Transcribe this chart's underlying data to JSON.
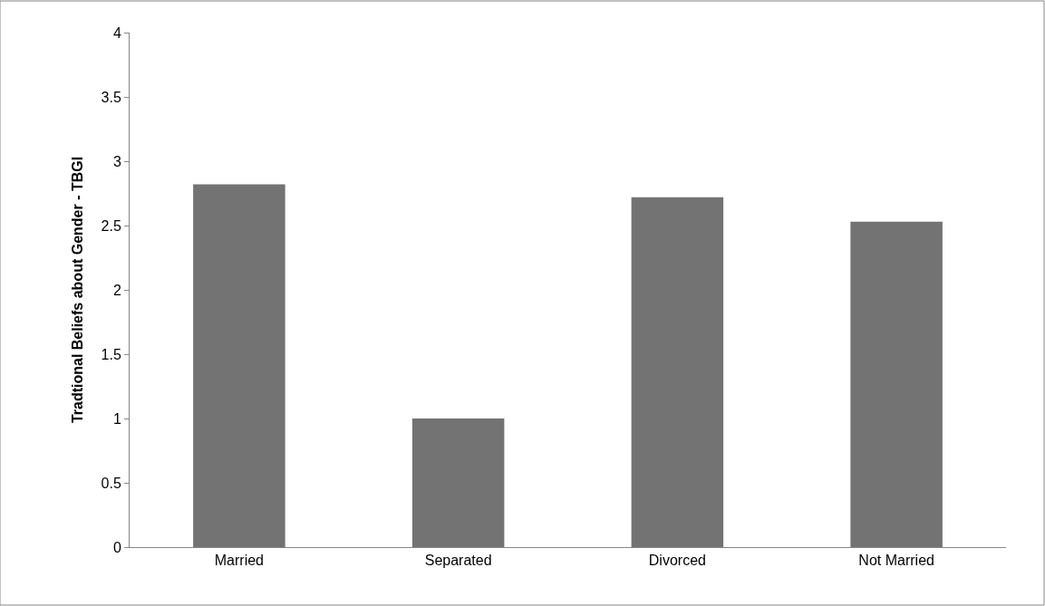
{
  "chart_data": {
    "type": "bar",
    "ylabel": "Tradtional Beliefs about Gender - TBGI",
    "categories": [
      "Married",
      "Separated",
      "Divorced",
      "Not Married"
    ],
    "values": [
      2.82,
      1.0,
      2.72,
      2.53
    ],
    "color": "#737373",
    "ylim": [
      0,
      4
    ],
    "yticks": [
      0,
      0.5,
      1,
      1.5,
      2,
      2.5,
      3,
      3.5,
      4
    ],
    "legend": false
  }
}
